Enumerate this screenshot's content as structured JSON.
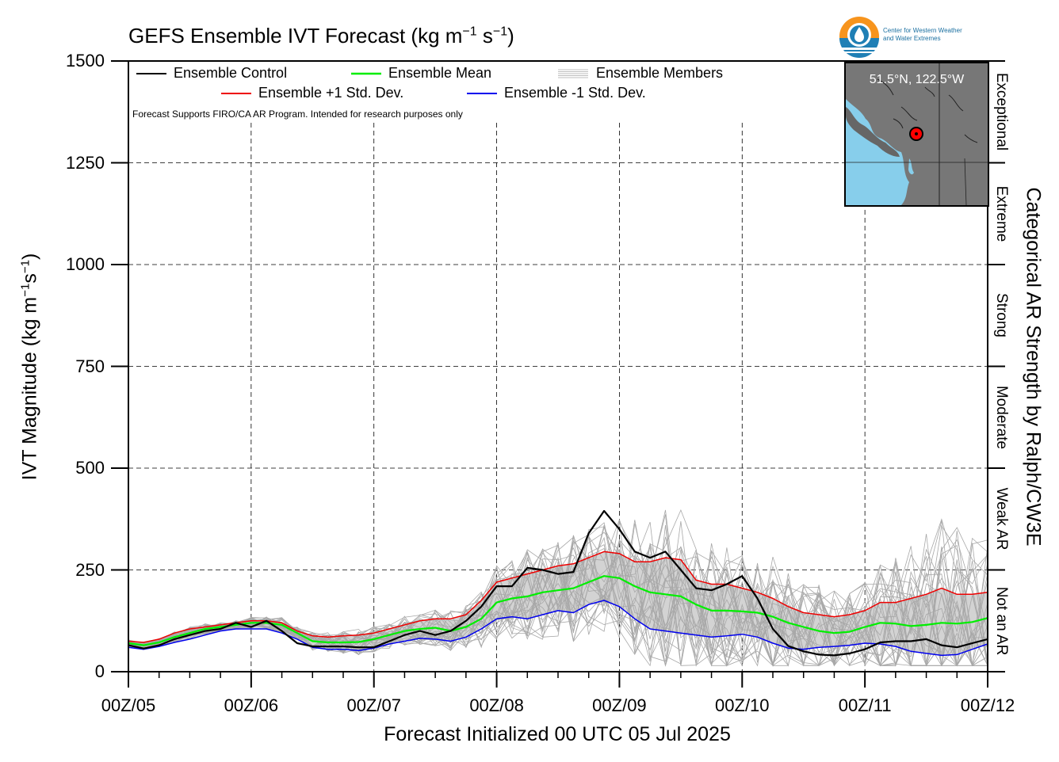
{
  "header": {
    "title": "GEFS Ensemble IVT Forecast (kg m",
    "title_exp1": "−1",
    "title_mid": " s",
    "title_exp2": "−1",
    "title_end": ")"
  },
  "axes": {
    "xlabel": "Forecast Initialized 00 UTC 05 Jul 2025",
    "ylabel_a": "IVT Magnitude (kg m",
    "ylabel_exp1": "−1",
    "ylabel_b": "s",
    "ylabel_exp2": "−1",
    "ylabel_c": ")",
    "y2label": "Categorical AR Strength by Ralph/CW3E"
  },
  "legend": {
    "control": "Ensemble Control",
    "mean": "Ensemble Mean",
    "members": "Ensemble Members",
    "plus": "Ensemble +1 Std. Dev.",
    "minus": "Ensemble -1 Std. Dev."
  },
  "note": "Forecast Supports FIRO/CA AR Program. Intended for research purposes only",
  "logo": {
    "line1": "Center for Western Weather",
    "line2": "and Water Extremes"
  },
  "inset": {
    "location": "51.5°N, 122.5°W"
  },
  "colors": {
    "control": "#000000",
    "mean": "#00ee00",
    "plus": "#ee0000",
    "minus": "#0000ee",
    "members": "#a8a8a8",
    "spread": "#d3d3d3",
    "ocean": "#87ceeb",
    "land": "#777777",
    "location_marker": "#ff0000"
  },
  "chart_data": {
    "type": "line",
    "title": "GEFS Ensemble IVT Forecast (kg m−1 s−1)",
    "xlabel": "Forecast Initialized 00 UTC 05 Jul 2025",
    "ylabel": "IVT Magnitude (kg m−1s−1)",
    "xlim": [
      0,
      168
    ],
    "ylim": [
      0,
      1500
    ],
    "x_unit": "hours since 00Z/05",
    "xticks": [
      0,
      24,
      48,
      72,
      96,
      120,
      144,
      168
    ],
    "xticklabels": [
      "00Z/05",
      "00Z/06",
      "00Z/07",
      "00Z/08",
      "00Z/09",
      "00Z/10",
      "00Z/11",
      "00Z/12"
    ],
    "yticks": [
      0,
      250,
      500,
      750,
      1000,
      1250,
      1500
    ],
    "grid": true,
    "x": [
      0,
      3,
      6,
      9,
      12,
      15,
      18,
      21,
      24,
      27,
      30,
      33,
      36,
      39,
      42,
      45,
      48,
      51,
      54,
      57,
      60,
      63,
      66,
      69,
      72,
      75,
      78,
      81,
      84,
      87,
      90,
      93,
      96,
      99,
      102,
      105,
      108,
      111,
      114,
      117,
      120,
      123,
      126,
      129,
      132,
      135,
      138,
      141,
      144,
      147,
      150,
      153,
      156,
      159,
      162,
      165,
      168
    ],
    "series": [
      {
        "name": "Ensemble Control",
        "color": "#000000",
        "values": [
          65,
          57,
          65,
          80,
          90,
          100,
          105,
          120,
          110,
          125,
          100,
          70,
          62,
          62,
          62,
          60,
          60,
          75,
          90,
          100,
          90,
          100,
          125,
          160,
          210,
          210,
          255,
          250,
          240,
          245,
          340,
          395,
          350,
          295,
          280,
          295,
          250,
          205,
          200,
          215,
          235,
          180,
          105,
          63,
          50,
          42,
          40,
          45,
          55,
          72,
          75,
          75,
          80,
          65,
          60,
          70,
          80
        ]
      },
      {
        "name": "Ensemble Mean",
        "color": "#00ee00",
        "values": [
          70,
          65,
          72,
          85,
          95,
          105,
          110,
          115,
          120,
          120,
          115,
          95,
          75,
          72,
          72,
          73,
          80,
          90,
          100,
          105,
          108,
          100,
          110,
          130,
          170,
          180,
          185,
          195,
          200,
          205,
          220,
          235,
          230,
          210,
          195,
          190,
          185,
          165,
          150,
          150,
          148,
          145,
          135,
          120,
          110,
          100,
          95,
          98,
          110,
          120,
          118,
          112,
          115,
          120,
          118,
          122,
          132
        ]
      },
      {
        "name": "Ensemble +1 Std. Dev.",
        "color": "#ee0000",
        "values": [
          75,
          72,
          80,
          95,
          105,
          110,
          115,
          120,
          125,
          125,
          120,
          100,
          88,
          85,
          88,
          90,
          95,
          105,
          115,
          125,
          130,
          130,
          140,
          175,
          220,
          230,
          240,
          250,
          260,
          265,
          280,
          295,
          290,
          270,
          270,
          280,
          275,
          225,
          215,
          215,
          205,
          195,
          180,
          160,
          145,
          140,
          135,
          140,
          150,
          170,
          170,
          180,
          190,
          205,
          190,
          190,
          195
        ]
      },
      {
        "name": "Ensemble -1 Std. Dev.",
        "color": "#0000ee",
        "values": [
          60,
          55,
          62,
          72,
          80,
          90,
          100,
          105,
          105,
          105,
          95,
          80,
          60,
          55,
          55,
          52,
          58,
          68,
          75,
          82,
          80,
          75,
          85,
          105,
          130,
          135,
          130,
          140,
          150,
          145,
          165,
          175,
          160,
          130,
          105,
          100,
          95,
          90,
          85,
          88,
          92,
          85,
          70,
          58,
          55,
          60,
          62,
          65,
          70,
          68,
          62,
          50,
          45,
          40,
          42,
          55,
          68
        ]
      }
    ],
    "ar_categories": [
      {
        "label": "Not an AR",
        "range": [
          0,
          250
        ]
      },
      {
        "label": "Weak AR",
        "range": [
          250,
          500
        ]
      },
      {
        "label": "Moderate",
        "range": [
          500,
          750
        ]
      },
      {
        "label": "Strong",
        "range": [
          750,
          1000
        ]
      },
      {
        "label": "Extreme",
        "range": [
          1000,
          1250
        ]
      },
      {
        "label": "Exceptional",
        "range": [
          1250,
          1500
        ]
      }
    ]
  }
}
